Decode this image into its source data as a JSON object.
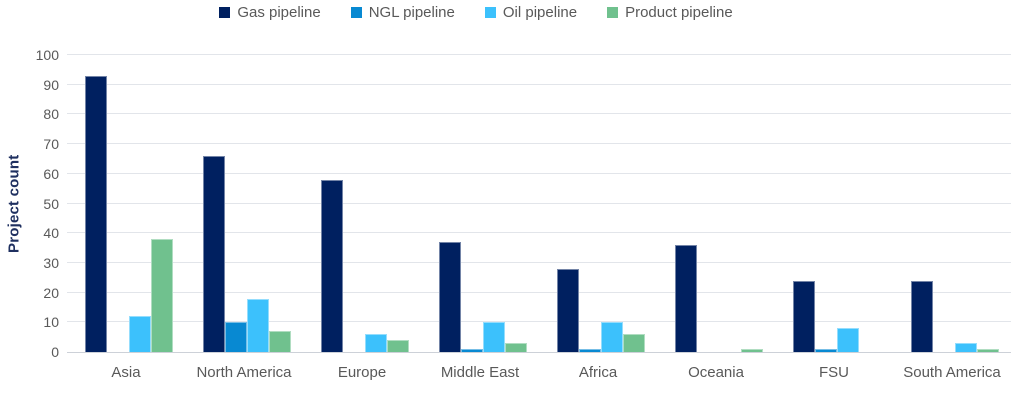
{
  "chart_data": {
    "type": "bar",
    "title": "",
    "xlabel": "",
    "ylabel": "Project count",
    "ylim": [
      0,
      100
    ],
    "ytick_step": 10,
    "grid": true,
    "legend_position": "top",
    "categories": [
      "Asia",
      "North America",
      "Europe",
      "Middle East",
      "Africa",
      "Oceania",
      "FSU",
      "South America"
    ],
    "series": [
      {
        "name": "Gas pipeline",
        "color": "#002060",
        "values": [
          93,
          66,
          58,
          37,
          28,
          36,
          24,
          24
        ]
      },
      {
        "name": "NGL pipeline",
        "color": "#0889d2",
        "values": [
          0,
          10,
          0,
          1,
          1,
          0,
          1,
          0
        ]
      },
      {
        "name": "Oil pipeline",
        "color": "#3cc1fc",
        "values": [
          12,
          18,
          6,
          10,
          10,
          0,
          8,
          3
        ]
      },
      {
        "name": "Product pipeline",
        "color": "#70c18e",
        "values": [
          38,
          7,
          4,
          3,
          6,
          1,
          0,
          1
        ]
      }
    ]
  },
  "style_colors": {
    "background": "#ffffff",
    "gridline": "#e2e5ea",
    "axis_line": "#cdd1d8",
    "tick_label": "#595959",
    "category_label": "#595959",
    "legend_label": "#595959",
    "axis_title": "#1f3060"
  }
}
